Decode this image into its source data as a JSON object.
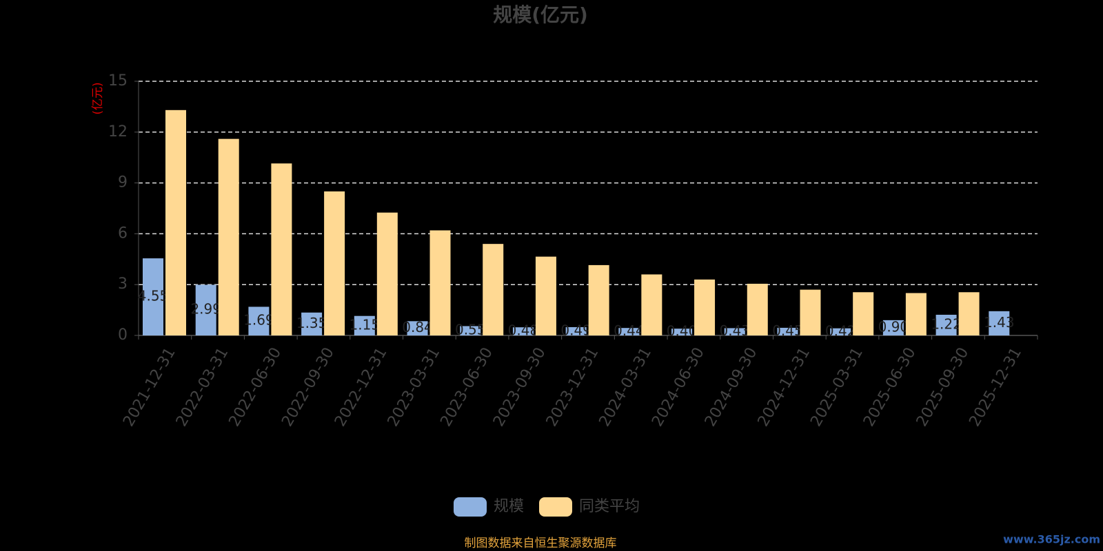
{
  "chart_data": {
    "type": "bar",
    "title": "规模(亿元)",
    "y_label": "(亿元)",
    "categories": [
      "2021-12-31",
      "2022-03-31",
      "2022-06-30",
      "2022-09-30",
      "2022-12-31",
      "2023-03-31",
      "2023-06-30",
      "2023-09-30",
      "2023-12-31",
      "2024-03-31",
      "2024-06-30",
      "2024-09-30",
      "2024-12-31",
      "2025-03-31",
      "2025-06-30",
      "2025-09-30",
      "2025-12-31"
    ],
    "series": [
      {
        "name": "规模",
        "color": "#8eb1e0",
        "values": [
          4.55,
          2.99,
          1.69,
          1.35,
          1.15,
          0.84,
          0.55,
          0.48,
          0.49,
          0.44,
          0.4,
          0.43,
          0.45,
          0.42,
          0.9,
          1.22,
          1.43
        ],
        "value_labels": [
          "4.55",
          "2.99",
          "1.69",
          "1.35",
          "1.15",
          "0.84",
          "0.55",
          "0.48",
          "0.49",
          "0.44",
          "0.40",
          "0.43",
          "0.45",
          "0.42",
          "0.90",
          "1.22",
          "1.43"
        ]
      },
      {
        "name": "同类平均",
        "color": "#ffd993",
        "values": [
          13.3,
          11.6,
          10.15,
          8.5,
          7.25,
          6.2,
          5.4,
          4.65,
          4.15,
          3.6,
          3.3,
          3.05,
          2.7,
          2.55,
          2.5,
          2.55,
          null
        ]
      }
    ],
    "ylim": [
      0,
      15
    ],
    "yticks": [
      0,
      3,
      6,
      9,
      12,
      15
    ],
    "grid": true,
    "source": "制图数据来自恒生聚源数据库",
    "watermark": "www.365jz.com"
  }
}
